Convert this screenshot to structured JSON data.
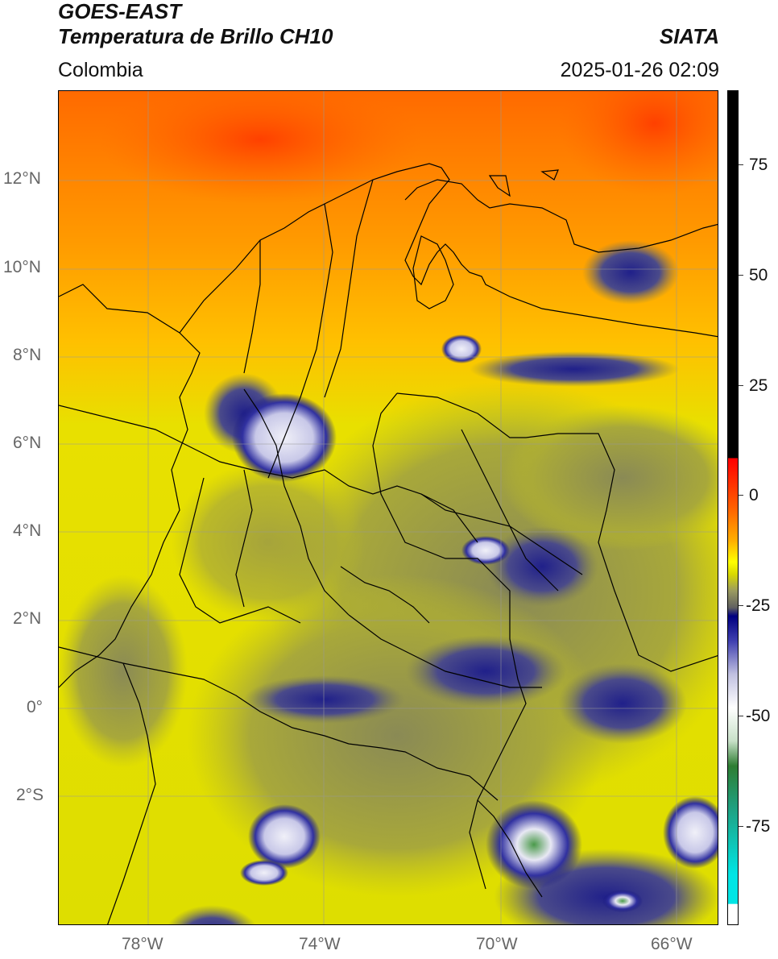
{
  "header": {
    "title_line1": "GOES-EAST",
    "title_line2": "Temperatura de Brillo CH10",
    "brand": "SIATA",
    "region": "Colombia",
    "datetime": "2025-01-26 02:09"
  },
  "map": {
    "lat_labels": [
      "12°N",
      "10°N",
      "8°N",
      "6°N",
      "4°N",
      "2°N",
      "0°",
      "2°S"
    ],
    "lon_labels": [
      "78°W",
      "74°W",
      "70°W",
      "66°W"
    ],
    "colors": {
      "warm_top": "#ff5a00",
      "orange": "#ff9a00",
      "yellow": "#e8e000",
      "olive": "#bdbd22",
      "gray": "#7a7a55",
      "navy": "#14147a",
      "cloud": "#e8e8f4",
      "green": "#3d8a3d"
    }
  },
  "colorbar": {
    "ticks": [
      "75",
      "50",
      "25",
      "0",
      "-25",
      "-50",
      "-75"
    ],
    "colors": {
      "black": "#000000",
      "red": "#ff0000",
      "yellow": "#ffff00",
      "navy": "#000080",
      "white": "#ffffff",
      "green": "#2e7d32",
      "cyan": "#00e5e5"
    }
  }
}
